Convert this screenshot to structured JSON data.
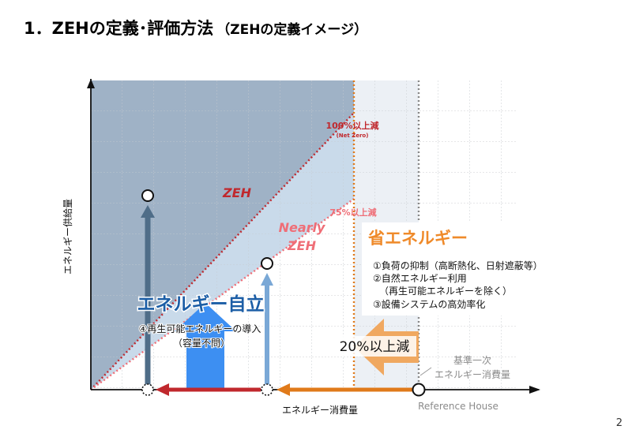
{
  "title": {
    "main": "1．ZEHの定義･評価方法",
    "sub": "（ZEHの定義イメージ）"
  },
  "axes": {
    "y_label": "エネルギー供給量",
    "x_label": "エネルギー消費量"
  },
  "zones": {
    "zeh": "ZEH",
    "nearly_zeh_line1": "Nearly",
    "nearly_zeh_line2": "ZEH"
  },
  "reduction_lines": {
    "full_label": "100%以上減",
    "full_sub": "(Net Zero)",
    "partial_label": "75%以上減"
  },
  "energy_saving": {
    "heading": "省エネルギー",
    "items": [
      "①負荷の抑制（高断熱化、日射遮蔽等）",
      "②自然エネルギー利用",
      "（再生可能エネルギーを除く）",
      "③設備システムの高効率化"
    ],
    "reduction": "20%以上減"
  },
  "self_sufficiency": {
    "heading": "エネルギー自立",
    "line1": "④再生可能エネルギーの導入",
    "line2": "（容量不問）"
  },
  "baseline": {
    "line1": "基準一次",
    "line2": "エネルギー消費量",
    "reference": "Reference House"
  },
  "page_number": "2",
  "colors": {
    "zeh_fill": "#9fb2c6",
    "nearly_fill": "#c3d6e8",
    "red_line": "#c0282d",
    "pink_line": "#ef6e77",
    "orange": "#f0a860",
    "orange_line": "#e07a1a",
    "blue_text": "#1c5ea6",
    "blue_arrow": "#3d8ff2",
    "slate_arrow": "#4f6d88",
    "light_arrow": "#7aa8d6"
  }
}
